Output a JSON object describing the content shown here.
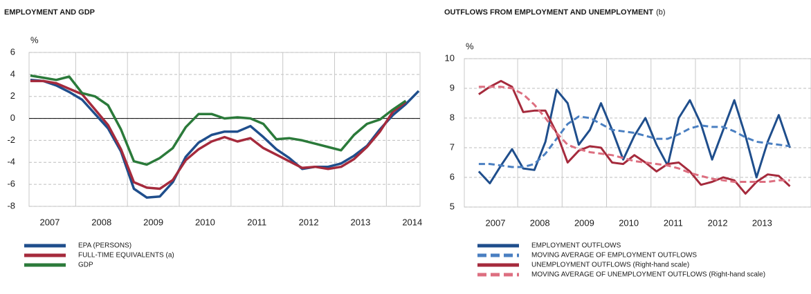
{
  "chart_data": [
    {
      "type": "line",
      "title": "EMPLOYMENT AND GDP",
      "y_label": "%",
      "x": [
        2007.125,
        2007.375,
        2007.625,
        2007.875,
        2008.125,
        2008.375,
        2008.625,
        2008.875,
        2009.125,
        2009.375,
        2009.625,
        2009.875,
        2010.125,
        2010.375,
        2010.625,
        2010.875,
        2011.125,
        2011.375,
        2011.625,
        2011.875,
        2012.125,
        2012.375,
        2012.625,
        2012.875,
        2013.125,
        2013.375,
        2013.625,
        2013.875,
        2014.125,
        2014.375,
        2014.625
      ],
      "xlim": [
        2007.1,
        2014.65
      ],
      "xticks": [
        {
          "value": 2007.5,
          "label": "2007"
        },
        {
          "value": 2008.5,
          "label": "2008"
        },
        {
          "value": 2009.5,
          "label": "2009"
        },
        {
          "value": 2010.5,
          "label": "2010"
        },
        {
          "value": 2011.5,
          "label": "2011"
        },
        {
          "value": 2012.5,
          "label": "2012"
        },
        {
          "value": 2013.5,
          "label": "2013"
        },
        {
          "value": 2014.5,
          "label": "2014"
        }
      ],
      "ylim": [
        -8,
        6
      ],
      "yticks": [
        -8,
        -6,
        -4,
        -2,
        0,
        2,
        4,
        6
      ],
      "grid": true,
      "zero_line": true,
      "series": [
        {
          "name": "EPA (PERSONS)",
          "color": "#1f4e8c",
          "dashed": false,
          "values": [
            3.5,
            3.4,
            3.0,
            2.4,
            1.7,
            0.4,
            -0.9,
            -3.0,
            -6.4,
            -7.2,
            -7.1,
            -5.8,
            -3.5,
            -2.2,
            -1.5,
            -1.2,
            -1.2,
            -0.7,
            -1.7,
            -2.8,
            -3.6,
            -4.6,
            -4.4,
            -4.4,
            -4.1,
            -3.4,
            -2.5,
            -1.0,
            0.3,
            1.3,
            2.5
          ]
        },
        {
          "name": "FULL-TIME EQUIVALENTS (a)",
          "color": "#a52a3c",
          "dashed": false,
          "values": [
            3.4,
            3.4,
            3.2,
            2.7,
            2.2,
            0.8,
            -0.6,
            -2.8,
            -5.8,
            -6.3,
            -6.4,
            -5.6,
            -3.8,
            -2.8,
            -2.1,
            -1.7,
            -2.1,
            -1.8,
            -2.7,
            -3.3,
            -3.9,
            -4.5,
            -4.4,
            -4.6,
            -4.4,
            -3.7,
            -2.6,
            -1.2,
            0.6,
            1.5,
            null
          ]
        },
        {
          "name": "GDP",
          "color": "#2b7a3a",
          "dashed": false,
          "values": [
            3.9,
            3.7,
            3.5,
            3.8,
            2.3,
            2.0,
            1.2,
            -1.0,
            -3.9,
            -4.2,
            -3.6,
            -2.7,
            -0.8,
            0.4,
            0.4,
            0.0,
            0.1,
            0.0,
            -0.5,
            -1.9,
            -1.8,
            -2.0,
            -2.3,
            -2.6,
            -2.9,
            -1.5,
            -0.5,
            -0.1,
            0.8,
            1.6,
            null
          ]
        }
      ]
    },
    {
      "type": "line",
      "title": "OUTFLOWS FROM EMPLOYMENT AND UNEMPLOYMENT",
      "title_note": "(b)",
      "y_label": "%",
      "x": [
        2007.125,
        2007.375,
        2007.625,
        2007.875,
        2008.125,
        2008.375,
        2008.625,
        2008.875,
        2009.125,
        2009.375,
        2009.625,
        2009.875,
        2010.125,
        2010.375,
        2010.625,
        2010.875,
        2011.125,
        2011.375,
        2011.625,
        2011.875,
        2012.125,
        2012.375,
        2012.625,
        2012.875,
        2013.125,
        2013.375,
        2013.625,
        2013.875,
        2014.125
      ],
      "xlim": [
        2006.8,
        2014.6
      ],
      "xticks": [
        {
          "value": 2007.5,
          "label": "2007"
        },
        {
          "value": 2008.5,
          "label": "2008"
        },
        {
          "value": 2009.5,
          "label": "2009"
        },
        {
          "value": 2010.5,
          "label": "2010"
        },
        {
          "value": 2011.5,
          "label": "2011"
        },
        {
          "value": 2012.5,
          "label": "2012"
        },
        {
          "value": 2013.5,
          "label": "2013"
        }
      ],
      "ylim": [
        5,
        10
      ],
      "yticks": [
        5,
        6,
        7,
        8,
        9,
        10
      ],
      "grid": true,
      "zero_line": false,
      "series": [
        {
          "name": "EMPLOYMENT OUTFLOWS",
          "color": "#1f4e8c",
          "dashed": false,
          "values": [
            6.2,
            5.8,
            6.4,
            6.95,
            6.3,
            6.25,
            7.2,
            8.95,
            8.5,
            7.1,
            7.6,
            8.5,
            7.6,
            6.6,
            7.4,
            8.0,
            7.1,
            6.4,
            8.0,
            8.6,
            7.8,
            6.6,
            7.6,
            8.6,
            7.4,
            6.0,
            7.2,
            8.1,
            7.0
          ]
        },
        {
          "name": "MOVING AVERAGE OF EMPLOYMENT OUTFLOWS",
          "color": "#4a7fc1",
          "dashed": true,
          "values": [
            6.45,
            6.45,
            6.4,
            6.35,
            6.35,
            6.45,
            6.8,
            7.3,
            7.8,
            8.05,
            8.0,
            7.8,
            7.6,
            7.55,
            7.5,
            7.4,
            7.3,
            7.3,
            7.45,
            7.65,
            7.75,
            7.7,
            7.7,
            7.55,
            7.35,
            7.2,
            7.15,
            7.1,
            7.05
          ]
        },
        {
          "name": "UNEMPLOYMENT OUTFLOWS (Right-hand scale)",
          "color": "#a52a3c",
          "dashed": false,
          "values": [
            8.8,
            9.05,
            9.25,
            9.05,
            8.2,
            8.25,
            8.25,
            7.5,
            6.5,
            6.9,
            7.05,
            7.0,
            6.5,
            6.45,
            6.75,
            6.5,
            6.2,
            6.45,
            6.5,
            6.2,
            5.75,
            5.85,
            6.0,
            5.9,
            5.45,
            5.85,
            6.1,
            6.05,
            5.7
          ]
        },
        {
          "name": "MOVING AVERAGE OF UNEMPLOYMENT OUTFLOWS (Right-hand scale)",
          "color": "#dd6f80",
          "dashed": true,
          "values": [
            9.05,
            9.05,
            9.05,
            9.0,
            8.8,
            8.45,
            8.0,
            7.5,
            7.1,
            6.95,
            6.85,
            6.8,
            6.75,
            6.65,
            6.55,
            6.5,
            6.45,
            6.4,
            6.3,
            6.15,
            6.05,
            5.95,
            5.9,
            5.85,
            5.85,
            5.85,
            5.85,
            5.9,
            5.9
          ]
        }
      ]
    }
  ]
}
